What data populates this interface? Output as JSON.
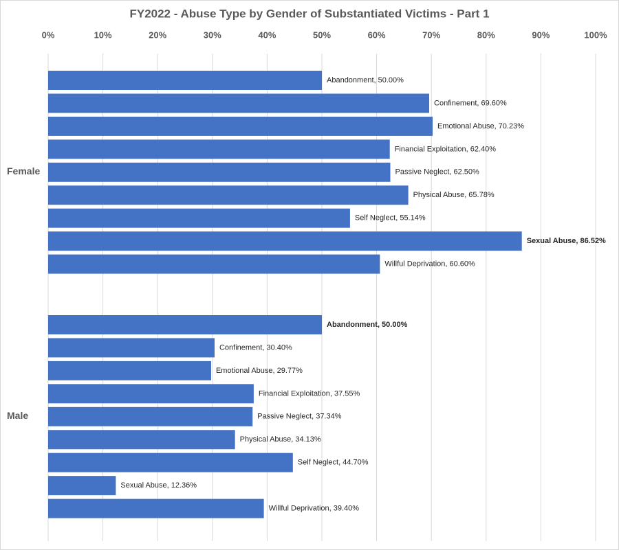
{
  "chart_data": {
    "type": "bar",
    "orientation": "horizontal",
    "title": "FY2022 - Abuse Type by Gender of Substantiated Victims - Part 1",
    "color": "#4472c4",
    "grid": true,
    "xlim": [
      0,
      100
    ],
    "xticks": [
      {
        "value": 0,
        "label": "0%"
      },
      {
        "value": 10,
        "label": "10%"
      },
      {
        "value": 20,
        "label": "20%"
      },
      {
        "value": 30,
        "label": "30%"
      },
      {
        "value": 40,
        "label": "40%"
      },
      {
        "value": 50,
        "label": "50%"
      },
      {
        "value": 60,
        "label": "60%"
      },
      {
        "value": 70,
        "label": "70%"
      },
      {
        "value": 80,
        "label": "80%"
      },
      {
        "value": 90,
        "label": "90%"
      },
      {
        "value": 100,
        "label": "100%"
      }
    ],
    "groups": [
      {
        "name": "Female",
        "values": [
          50.0,
          69.6,
          70.23,
          62.4,
          62.5,
          65.78,
          55.14,
          86.52,
          60.6
        ],
        "value_labels": [
          "Abandonment, 50.00%",
          "Confinement, 69.60%",
          "Emotional Abuse, 70.23%",
          "Financial Exploitation, 62.40%",
          "Passive Neglect, 62.50%",
          "Physical Abuse, 65.78%",
          "Self Neglect, 55.14%",
          "Sexual Abuse, 86.52%",
          "Willful Deprivation, 60.60%"
        ],
        "bold_label": 7
      },
      {
        "name": "Male",
        "values": [
          50.0,
          30.4,
          29.77,
          37.55,
          37.34,
          34.13,
          44.7,
          12.36,
          39.4
        ],
        "value_labels": [
          "Abandonment, 50.00%",
          "Confinement, 30.40%",
          "Emotional Abuse, 29.77%",
          "Financial Exploitation, 37.55%",
          "Passive Neglect, 37.34%",
          "Physical Abuse, 34.13%",
          "Self Neglect, 44.70%",
          "Sexual Abuse, 12.36%",
          "Willful Deprivation, 39.40%"
        ],
        "bold_label": 0
      }
    ]
  }
}
